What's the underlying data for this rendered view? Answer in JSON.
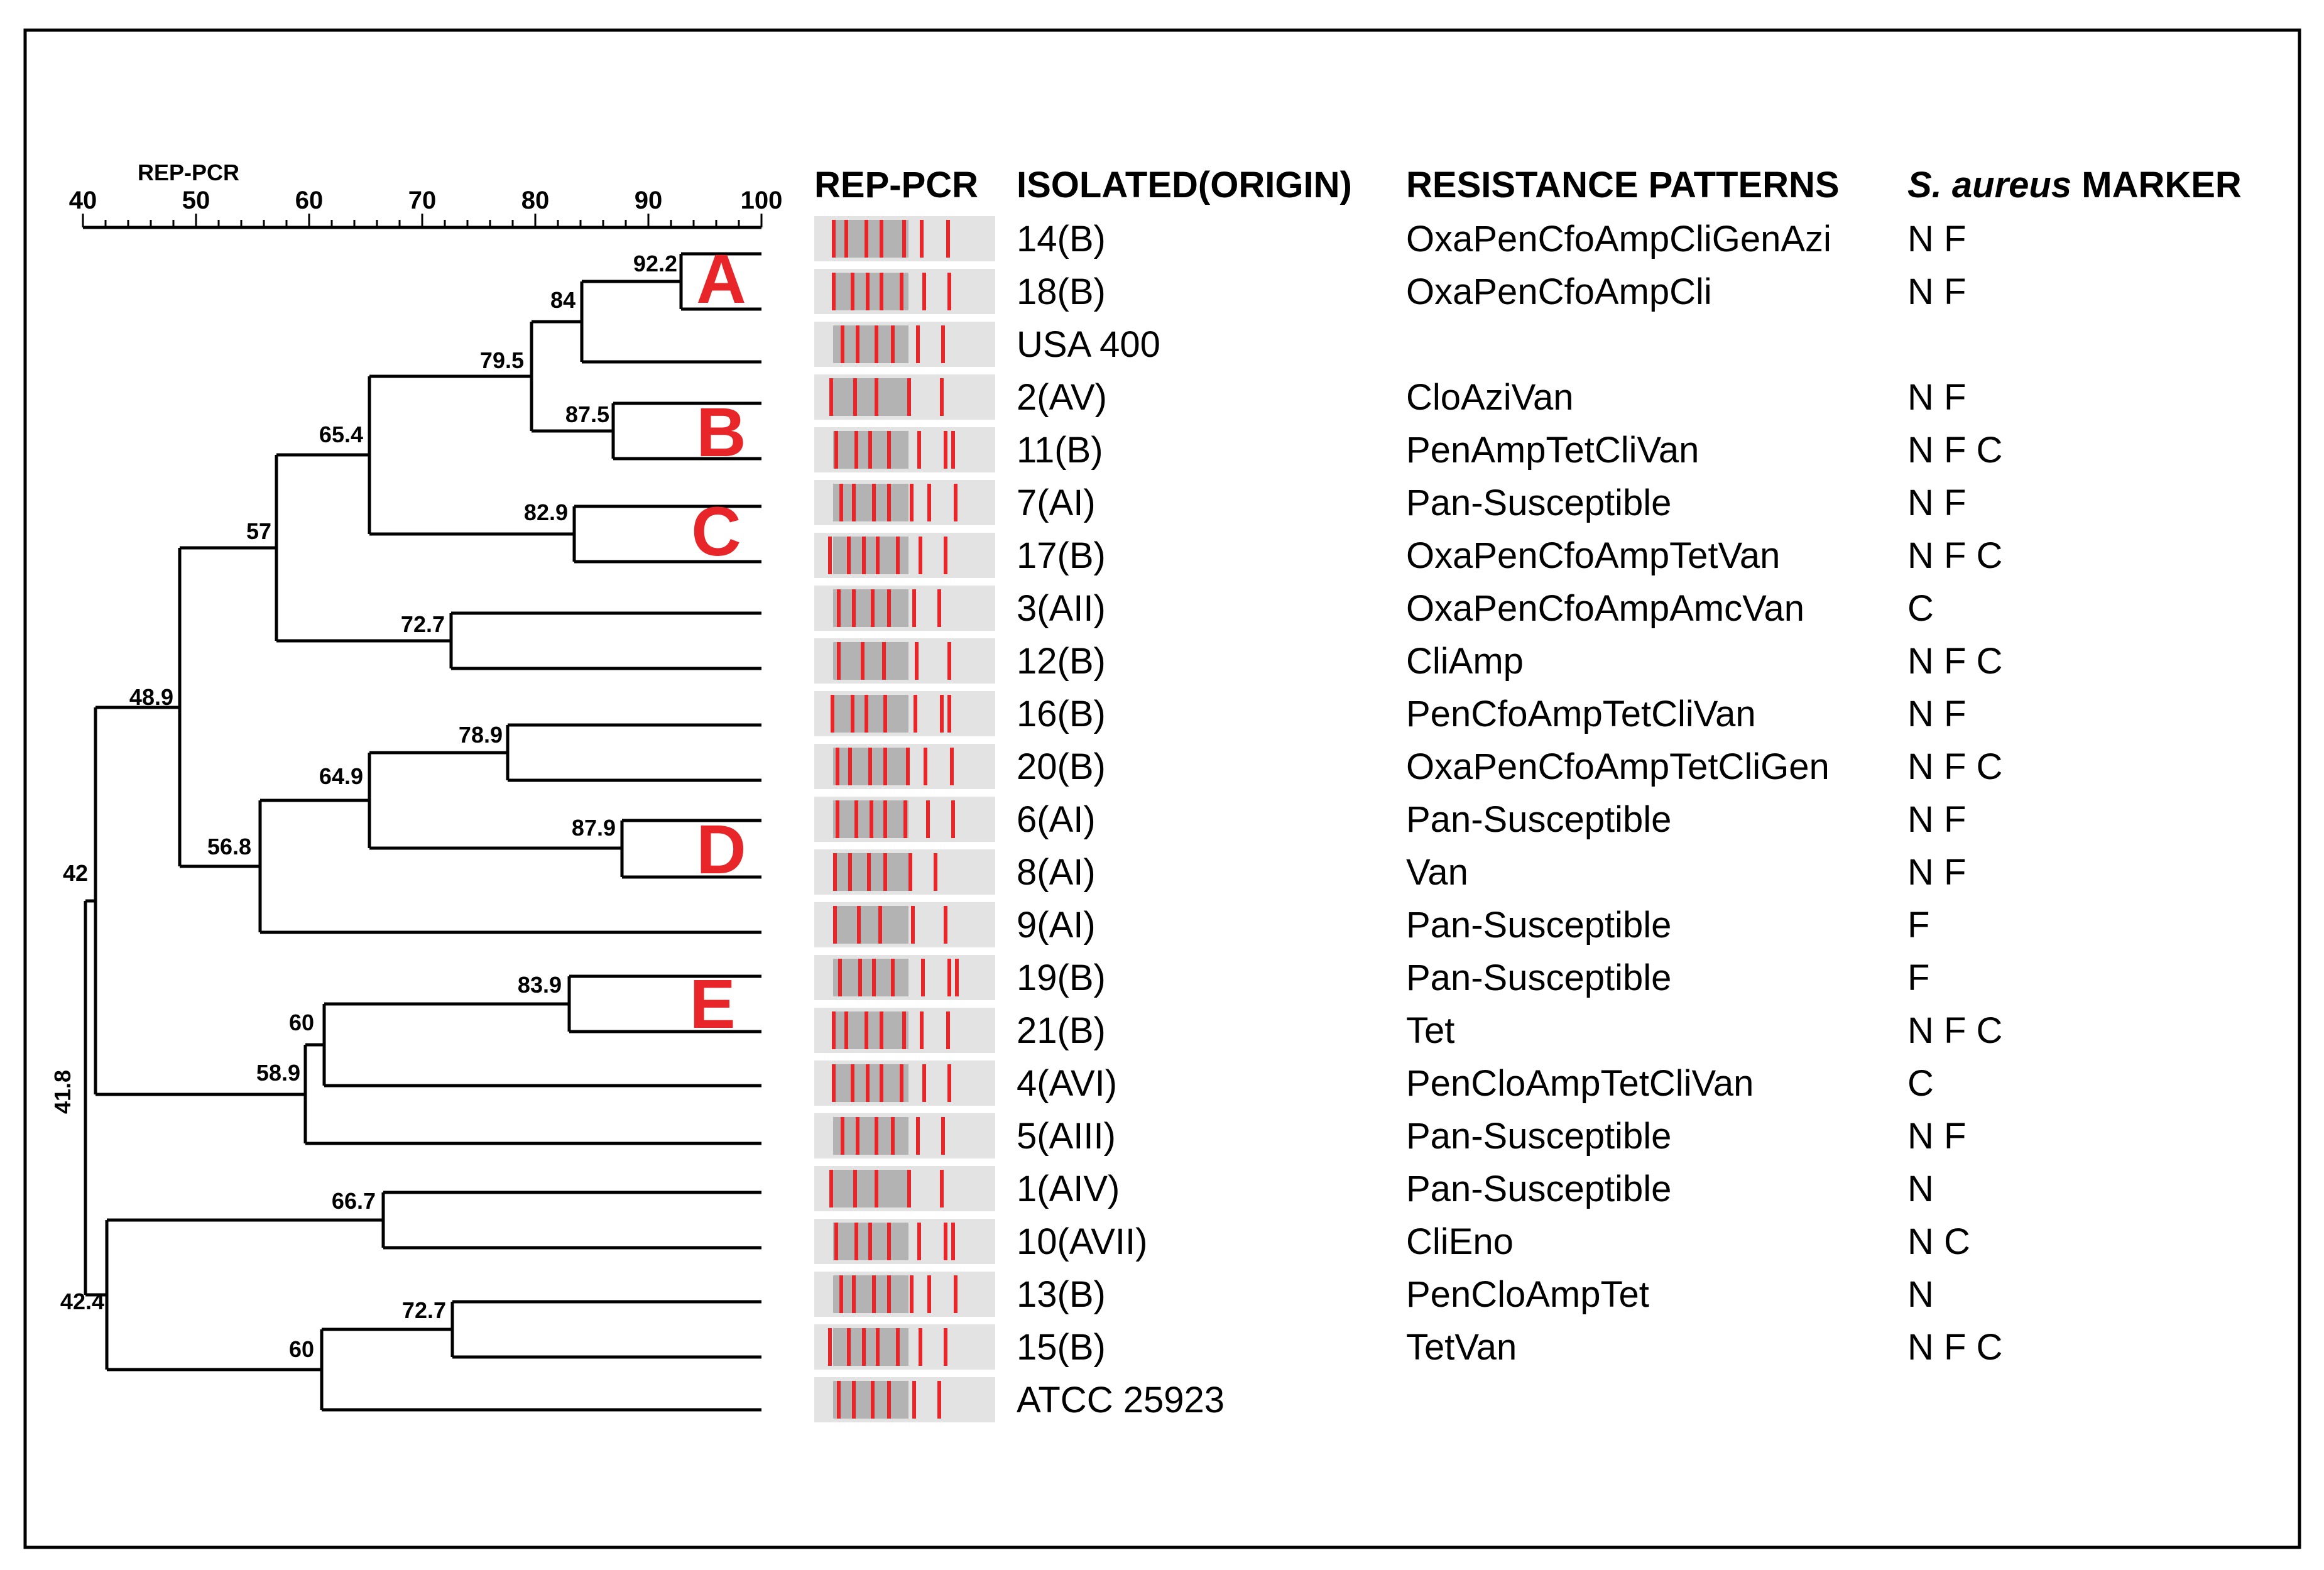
{
  "dendrogram": {
    "axis_title": "REP-PCR",
    "axis": {
      "min": 40,
      "max": 100,
      "ticks": [
        "40",
        "50",
        "60",
        "70",
        "80",
        "90",
        "100"
      ]
    },
    "node_labels": [
      "92.2",
      "84",
      "79.5",
      "87.5",
      "65.4",
      "57",
      "82.9",
      "72.7",
      "48.9",
      "78.9",
      "64.9",
      "87.9",
      "56.8",
      "42",
      "83.9",
      "60",
      "58.9",
      "41.8",
      "66.7",
      "72.7",
      "60",
      "42.4"
    ],
    "clusters": [
      "A",
      "B",
      "C",
      "D",
      "E"
    ]
  },
  "headers": {
    "gel": "REP-PCR",
    "origin": "ISOLATED(ORIGIN)",
    "resistance": "RESISTANCE PATTERNS",
    "marker_species": "S. aureus",
    "marker_word": "MARKER"
  },
  "rows": [
    {
      "isolate": "14(B)",
      "resistance": "OxaPenCfoAmpCliGenAzi",
      "marker": "N F"
    },
    {
      "isolate": "18(B)",
      "resistance": "OxaPenCfoAmpCli",
      "marker": "N F"
    },
    {
      "isolate": "USA 400",
      "resistance": "",
      "marker": ""
    },
    {
      "isolate": "2(AV)",
      "resistance": "CloAziVan",
      "marker": "N F"
    },
    {
      "isolate": "11(B)",
      "resistance": "PenAmpTetCliVan",
      "marker": "N F C"
    },
    {
      "isolate": "7(AI)",
      "resistance": "Pan-Susceptible",
      "marker": "N F"
    },
    {
      "isolate": "17(B)",
      "resistance": "OxaPenCfoAmpTetVan",
      "marker": "N F C"
    },
    {
      "isolate": "3(AII)",
      "resistance": "OxaPenCfoAmpAmcVan",
      "marker": "C"
    },
    {
      "isolate": "12(B)",
      "resistance": "CliAmp",
      "marker": "N F C"
    },
    {
      "isolate": "16(B)",
      "resistance": "PenCfoAmpTetCliVan",
      "marker": "N F"
    },
    {
      "isolate": "20(B)",
      "resistance": "OxaPenCfoAmpTetCliGen",
      "marker": "N F C"
    },
    {
      "isolate": "6(AI)",
      "resistance": "Pan-Susceptible",
      "marker": "N F"
    },
    {
      "isolate": "8(AI)",
      "resistance": "Van",
      "marker": "N F"
    },
    {
      "isolate": "9(AI)",
      "resistance": "Pan-Susceptible",
      "marker": "F"
    },
    {
      "isolate": "19(B)",
      "resistance": "Pan-Susceptible",
      "marker": "F"
    },
    {
      "isolate": "21(B)",
      "resistance": "Tet",
      "marker": "N F C"
    },
    {
      "isolate": "4(AVI)",
      "resistance": "PenCloAmpTetCliVan",
      "marker": "C"
    },
    {
      "isolate": "5(AIII)",
      "resistance": "Pan-Susceptible",
      "marker": "N F"
    },
    {
      "isolate": "1(AIV)",
      "resistance": "Pan-Susceptible",
      "marker": "N"
    },
    {
      "isolate": "10(AVII)",
      "resistance": "CliEno",
      "marker": "N C"
    },
    {
      "isolate": "13(B)",
      "resistance": "PenCloAmpTet",
      "marker": "N"
    },
    {
      "isolate": "15(B)",
      "resistance": "TetVan",
      "marker": "N F C"
    },
    {
      "isolate": "ATCC 25923",
      "resistance": "",
      "marker": ""
    }
  ],
  "colors": {
    "band": "#e8262a",
    "line": "#000000"
  }
}
